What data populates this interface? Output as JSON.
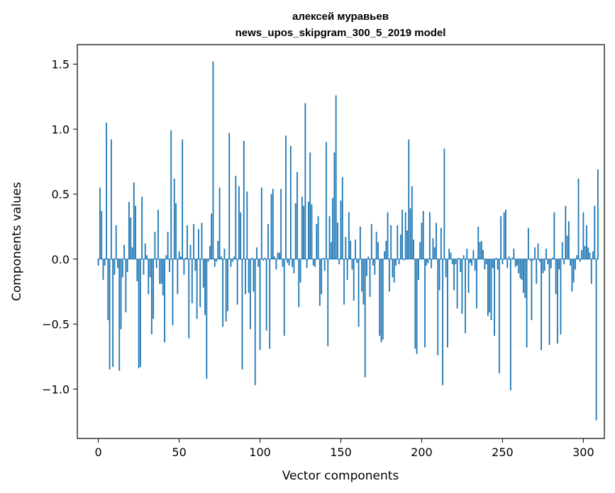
{
  "chart_data": {
    "type": "bar",
    "title_lines": [
      "алексей муравьев",
      "news_upos_skipgram_300_5_2019 model"
    ],
    "xlabel": "Vector components",
    "ylabel": "Components values",
    "xlim": [
      -13,
      313
    ],
    "ylim": [
      -1.38,
      1.65
    ],
    "xticks": [
      0,
      50,
      100,
      150,
      200,
      250,
      300
    ],
    "yticks": [
      -1.0,
      -0.5,
      0.0,
      0.5,
      1.0,
      1.5
    ],
    "ytick_labels": [
      "−1.0",
      "−0.5",
      "0.0",
      "0.5",
      "1.0",
      "1.5"
    ],
    "bar_color": "#1f77b4",
    "grid": false,
    "values": [
      -0.05,
      0.55,
      0.37,
      -0.16,
      -0.05,
      1.05,
      -0.47,
      -0.85,
      0.92,
      -0.83,
      -0.12,
      0.26,
      -0.07,
      -0.86,
      -0.54,
      -0.14,
      0.11,
      -0.41,
      -0.1,
      0.44,
      0.32,
      0.09,
      0.59,
      0.41,
      -0.17,
      -0.84,
      -0.83,
      0.48,
      -0.12,
      0.12,
      0.03,
      -0.27,
      -0.14,
      -0.58,
      -0.46,
      0.21,
      -0.07,
      0.38,
      -0.19,
      -0.19,
      -0.28,
      -0.64,
      0.03,
      0.21,
      -0.1,
      0.99,
      -0.51,
      0.62,
      0.43,
      -0.27,
      0.06,
      0.02,
      0.92,
      -0.12,
      0.01,
      0.26,
      -0.61,
      0.11,
      -0.34,
      0.27,
      -0.09,
      -0.46,
      0.23,
      -0.37,
      0.28,
      -0.22,
      -0.43,
      -0.92,
      -0.02,
      0.1,
      0.35,
      1.52,
      -0.06,
      -0.02,
      0.14,
      0.55,
      0.02,
      -0.52,
      0.08,
      -0.48,
      -0.4,
      0.97,
      -0.06,
      -0.02,
      0.02,
      0.64,
      -0.35,
      0.56,
      0.36,
      -0.85,
      0.91,
      -0.27,
      0.52,
      -0.26,
      -0.54,
      0.01,
      -0.25,
      -0.97,
      0.09,
      -0.06,
      -0.7,
      0.55,
      -0.01,
      0.01,
      -0.55,
      0.27,
      -0.69,
      0.5,
      0.54,
      0.02,
      -0.08,
      0.05,
      0.05,
      0.54,
      -0.06,
      -0.59,
      0.95,
      -0.03,
      -0.05,
      0.87,
      -0.06,
      -0.11,
      0.43,
      0.67,
      -0.37,
      -0.18,
      0.48,
      0.41,
      1.2,
      -0.07,
      0.44,
      0.82,
      0.42,
      -0.05,
      -0.06,
      0.27,
      0.33,
      -0.36,
      -0.27,
      0.01,
      -0.09,
      0.9,
      -0.67,
      0.33,
      0.13,
      0.47,
      0.82,
      1.26,
      0.28,
      -0.04,
      0.45,
      0.63,
      -0.35,
      0.17,
      -0.16,
      0.36,
      0.14,
      -0.08,
      -0.32,
      0.15,
      -0.03,
      -0.52,
      0.25,
      -0.25,
      -0.35,
      -0.91,
      -0.13,
      0.02,
      -0.29,
      0.27,
      -0.05,
      -0.12,
      0.21,
      0.13,
      -0.59,
      -0.64,
      -0.62,
      0.06,
      0.14,
      0.36,
      -0.25,
      0.26,
      -0.14,
      -0.18,
      -0.05,
      0.26,
      -0.04,
      0.19,
      0.38,
      -0.01,
      0.36,
      0.22,
      0.92,
      0.39,
      0.56,
      0.15,
      -0.69,
      -0.73,
      -0.16,
      0.13,
      0.28,
      0.37,
      -0.68,
      -0.05,
      -0.03,
      0.36,
      -0.07,
      0.16,
      0.09,
      0.28,
      -0.74,
      -0.24,
      0.24,
      -0.97,
      0.85,
      -0.14,
      -0.68,
      0.08,
      0.05,
      -0.04,
      -0.24,
      -0.04,
      -0.38,
      0.01,
      -0.1,
      -0.42,
      0.03,
      -0.57,
      0.08,
      -0.26,
      -0.03,
      -0.05,
      0.07,
      -0.09,
      -0.38,
      0.25,
      0.13,
      0.14,
      0.07,
      -0.08,
      -0.04,
      -0.44,
      -0.41,
      -0.47,
      -0.07,
      -0.59,
      0.01,
      -0.08,
      -0.88,
      0.33,
      -0.04,
      0.36,
      0.38,
      -0.07,
      0.02,
      -1.01,
      0.01,
      0.08,
      -0.06,
      -0.05,
      -0.11,
      -0.15,
      -0.16,
      -0.26,
      -0.3,
      -0.68,
      0.24,
      -0.01,
      -0.47,
      -0.01,
      0.09,
      -0.19,
      0.12,
      -0.02,
      -0.7,
      -0.11,
      -0.09,
      0.08,
      -0.04,
      -0.66,
      -0.07,
      0.01,
      0.36,
      -0.27,
      -0.65,
      -0.08,
      -0.58,
      0.13,
      -0.04,
      0.41,
      0.18,
      0.29,
      -0.05,
      -0.25,
      -0.18,
      -0.08,
      0.03,
      0.62,
      -0.02,
      0.07,
      0.36,
      0.1,
      0.26,
      0.09,
      0.05,
      -0.19,
      0.06,
      0.41,
      -1.24,
      0.69
    ]
  }
}
